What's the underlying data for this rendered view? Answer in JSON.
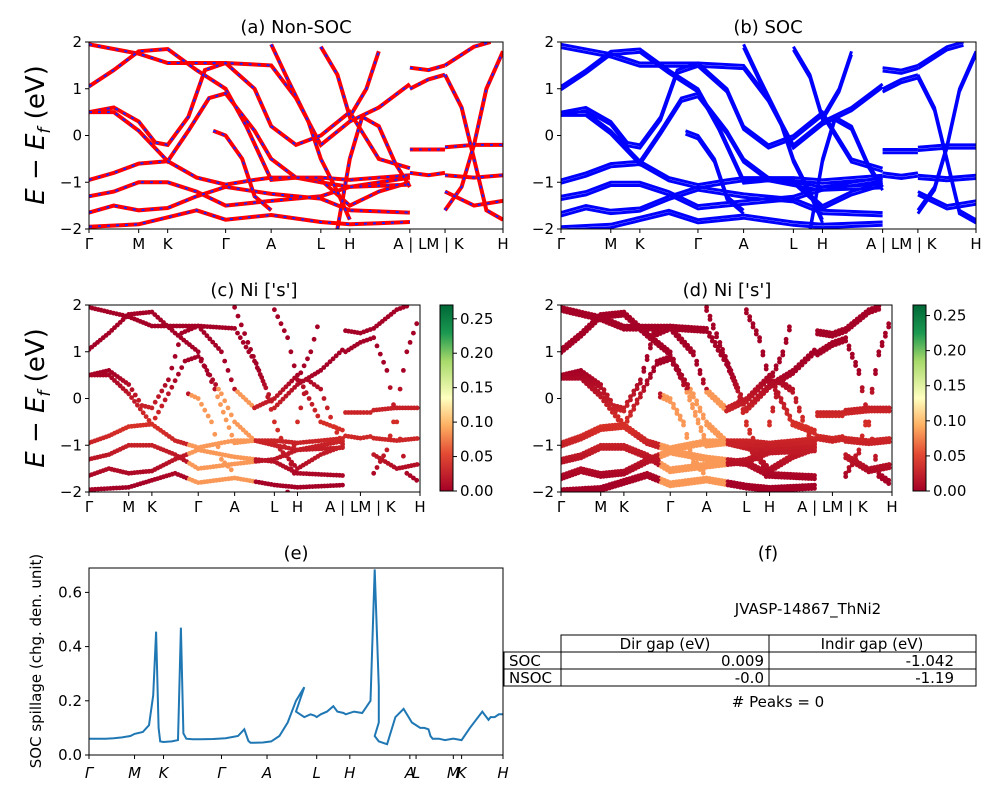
{
  "figure": {
    "panel_a_title": "(a) Non-SOC",
    "panel_b_title": "(b) SOC",
    "panel_c_title": "(c)  Ni ['s']",
    "panel_d_title": "(d) Ni ['s']",
    "panel_e_title": "(e)",
    "panel_f_title": "(f)",
    "band_ylabel": "E − E",
    "band_ylabel_sub": "f",
    "band_ylabel_unit": " (eV)",
    "spillage_ylabel": "SOC spillage (chg. den. unit)",
    "kpath_labels_ab": [
      "Γ",
      "M",
      "K",
      "Γ",
      "A",
      "L",
      "H",
      "A | L",
      "M | K",
      "H"
    ],
    "kpath_labels_cd": [
      "Γ",
      "M",
      "K",
      "Γ",
      "A",
      "L",
      "H",
      "A | LM | K",
      "H"
    ],
    "kpath_labels_e": [
      "Γ",
      "M",
      "K",
      "Γ",
      "A",
      "L",
      "H",
      "A",
      "L",
      "M",
      "K",
      "H"
    ],
    "band_yticks": [
      "−2",
      "−1",
      "0",
      "1",
      "2"
    ],
    "colorbar_ticks_c": [
      "0.00",
      "0.05",
      "0.10",
      "0.15",
      "0.20",
      "0.25"
    ],
    "colorbar_ticks_d": [
      "0.00",
      "0.05",
      "0.10",
      "0.15",
      "0.20",
      "0.25"
    ],
    "colors": {
      "nsoc_band": "#ff0000",
      "nsoc_dash": "#1f1fff",
      "soc_band": "#0000ff",
      "spillage_line": "#1f77b4",
      "cmap_low": "#a50026",
      "cmap_mid": "#ffffbf",
      "cmap_high": "#006837"
    }
  },
  "table": {
    "material": "JVASP-14867_ThNi2",
    "headers": [
      "Dir gap (eV)",
      "Indir gap (eV)"
    ],
    "rows": [
      {
        "label": "SOC",
        "dir": "0.009",
        "indir": "-1.042"
      },
      {
        "label": "NSOC",
        "dir": "-0.0",
        "indir": "-1.19"
      }
    ],
    "peaks": "# Peaks = 0"
  },
  "chart_data": [
    {
      "type": "line",
      "panel": "a",
      "title": "(a) Non-SOC",
      "ylabel": "E − E_f (eV)",
      "ylim": [
        -2,
        2
      ],
      "x_ticks": [
        "Γ",
        "M",
        "K",
        "Γ",
        "A",
        "L",
        "H",
        "A | L",
        "M | K",
        "H"
      ],
      "legend": "none"
    },
    {
      "type": "line",
      "panel": "b",
      "title": "(b) SOC",
      "ylim": [
        -2,
        2
      ],
      "x_ticks": [
        "Γ",
        "M",
        "K",
        "Γ",
        "A",
        "L",
        "H",
        "A | L",
        "M | K",
        "H"
      ],
      "legend": "none"
    },
    {
      "type": "scatter",
      "panel": "c",
      "title": "(c)  Ni ['s']",
      "ylabel": "E − E_f (eV)",
      "ylim": [
        -2,
        2
      ],
      "colorbar_range": [
        0,
        0.27
      ],
      "colorbar_ticks": [
        0,
        0.05,
        0.1,
        0.15,
        0.2,
        0.25
      ],
      "x_ticks": [
        "Γ",
        "M",
        "K",
        "Γ",
        "A",
        "L",
        "H",
        "A | LM | K",
        "H"
      ]
    },
    {
      "type": "scatter",
      "panel": "d",
      "title": "(d) Ni ['s']",
      "ylim": [
        -2,
        2
      ],
      "colorbar_range": [
        0,
        0.265
      ],
      "colorbar_ticks": [
        0,
        0.05,
        0.1,
        0.15,
        0.2,
        0.25
      ],
      "x_ticks": [
        "Γ",
        "M",
        "K",
        "Γ",
        "A",
        "L",
        "H",
        "A | LM | K",
        "H"
      ]
    },
    {
      "type": "line",
      "panel": "e",
      "title": "(e)",
      "ylabel": "SOC spillage (chg. den. unit)",
      "ylim": [
        0,
        0.69
      ],
      "yticks": [
        0.0,
        0.2,
        0.4,
        0.6
      ],
      "x_ticks": [
        "Γ",
        "M",
        "K",
        "Γ",
        "A",
        "L",
        "H",
        "A",
        "L",
        "M",
        "K",
        "H"
      ],
      "x": [
        0.0,
        0.02,
        0.04,
        0.06,
        0.08,
        0.1,
        0.11,
        0.13,
        0.145,
        0.155,
        0.162,
        0.168,
        0.172,
        0.18,
        0.2,
        0.215,
        0.222,
        0.228,
        0.235,
        0.25,
        0.27,
        0.3,
        0.33,
        0.36,
        0.375,
        0.385,
        0.39,
        0.4,
        0.42,
        0.44,
        0.46,
        0.48,
        0.5,
        0.52,
        0.5,
        0.51,
        0.52,
        0.535,
        0.545,
        0.55,
        0.56,
        0.575,
        0.59,
        0.6,
        0.615,
        0.62,
        0.64,
        0.66,
        0.68,
        0.69,
        0.7,
        0.7,
        0.69,
        0.7,
        0.71,
        0.72,
        0.74,
        0.76,
        0.78,
        0.8,
        0.8,
        0.81,
        0.82,
        0.825,
        0.83,
        0.845,
        0.86,
        0.88,
        0.9,
        0.92,
        0.95,
        0.965,
        0.97,
        0.98,
        0.99,
        1.0
      ],
      "y": [
        0.06,
        0.06,
        0.06,
        0.062,
        0.065,
        0.07,
        0.078,
        0.085,
        0.11,
        0.22,
        0.455,
        0.1,
        0.05,
        0.048,
        0.05,
        0.055,
        0.47,
        0.08,
        0.06,
        0.058,
        0.058,
        0.059,
        0.062,
        0.07,
        0.095,
        0.052,
        0.045,
        0.045,
        0.046,
        0.05,
        0.07,
        0.12,
        0.2,
        0.25,
        0.16,
        0.15,
        0.14,
        0.15,
        0.145,
        0.14,
        0.15,
        0.16,
        0.18,
        0.16,
        0.155,
        0.15,
        0.16,
        0.155,
        0.2,
        0.685,
        0.25,
        0.12,
        0.07,
        0.05,
        0.045,
        0.04,
        0.14,
        0.17,
        0.12,
        0.1,
        0.1,
        0.1,
        0.095,
        0.07,
        0.06,
        0.06,
        0.055,
        0.06,
        0.055,
        0.1,
        0.16,
        0.13,
        0.14,
        0.14,
        0.15,
        0.15
      ]
    }
  ]
}
